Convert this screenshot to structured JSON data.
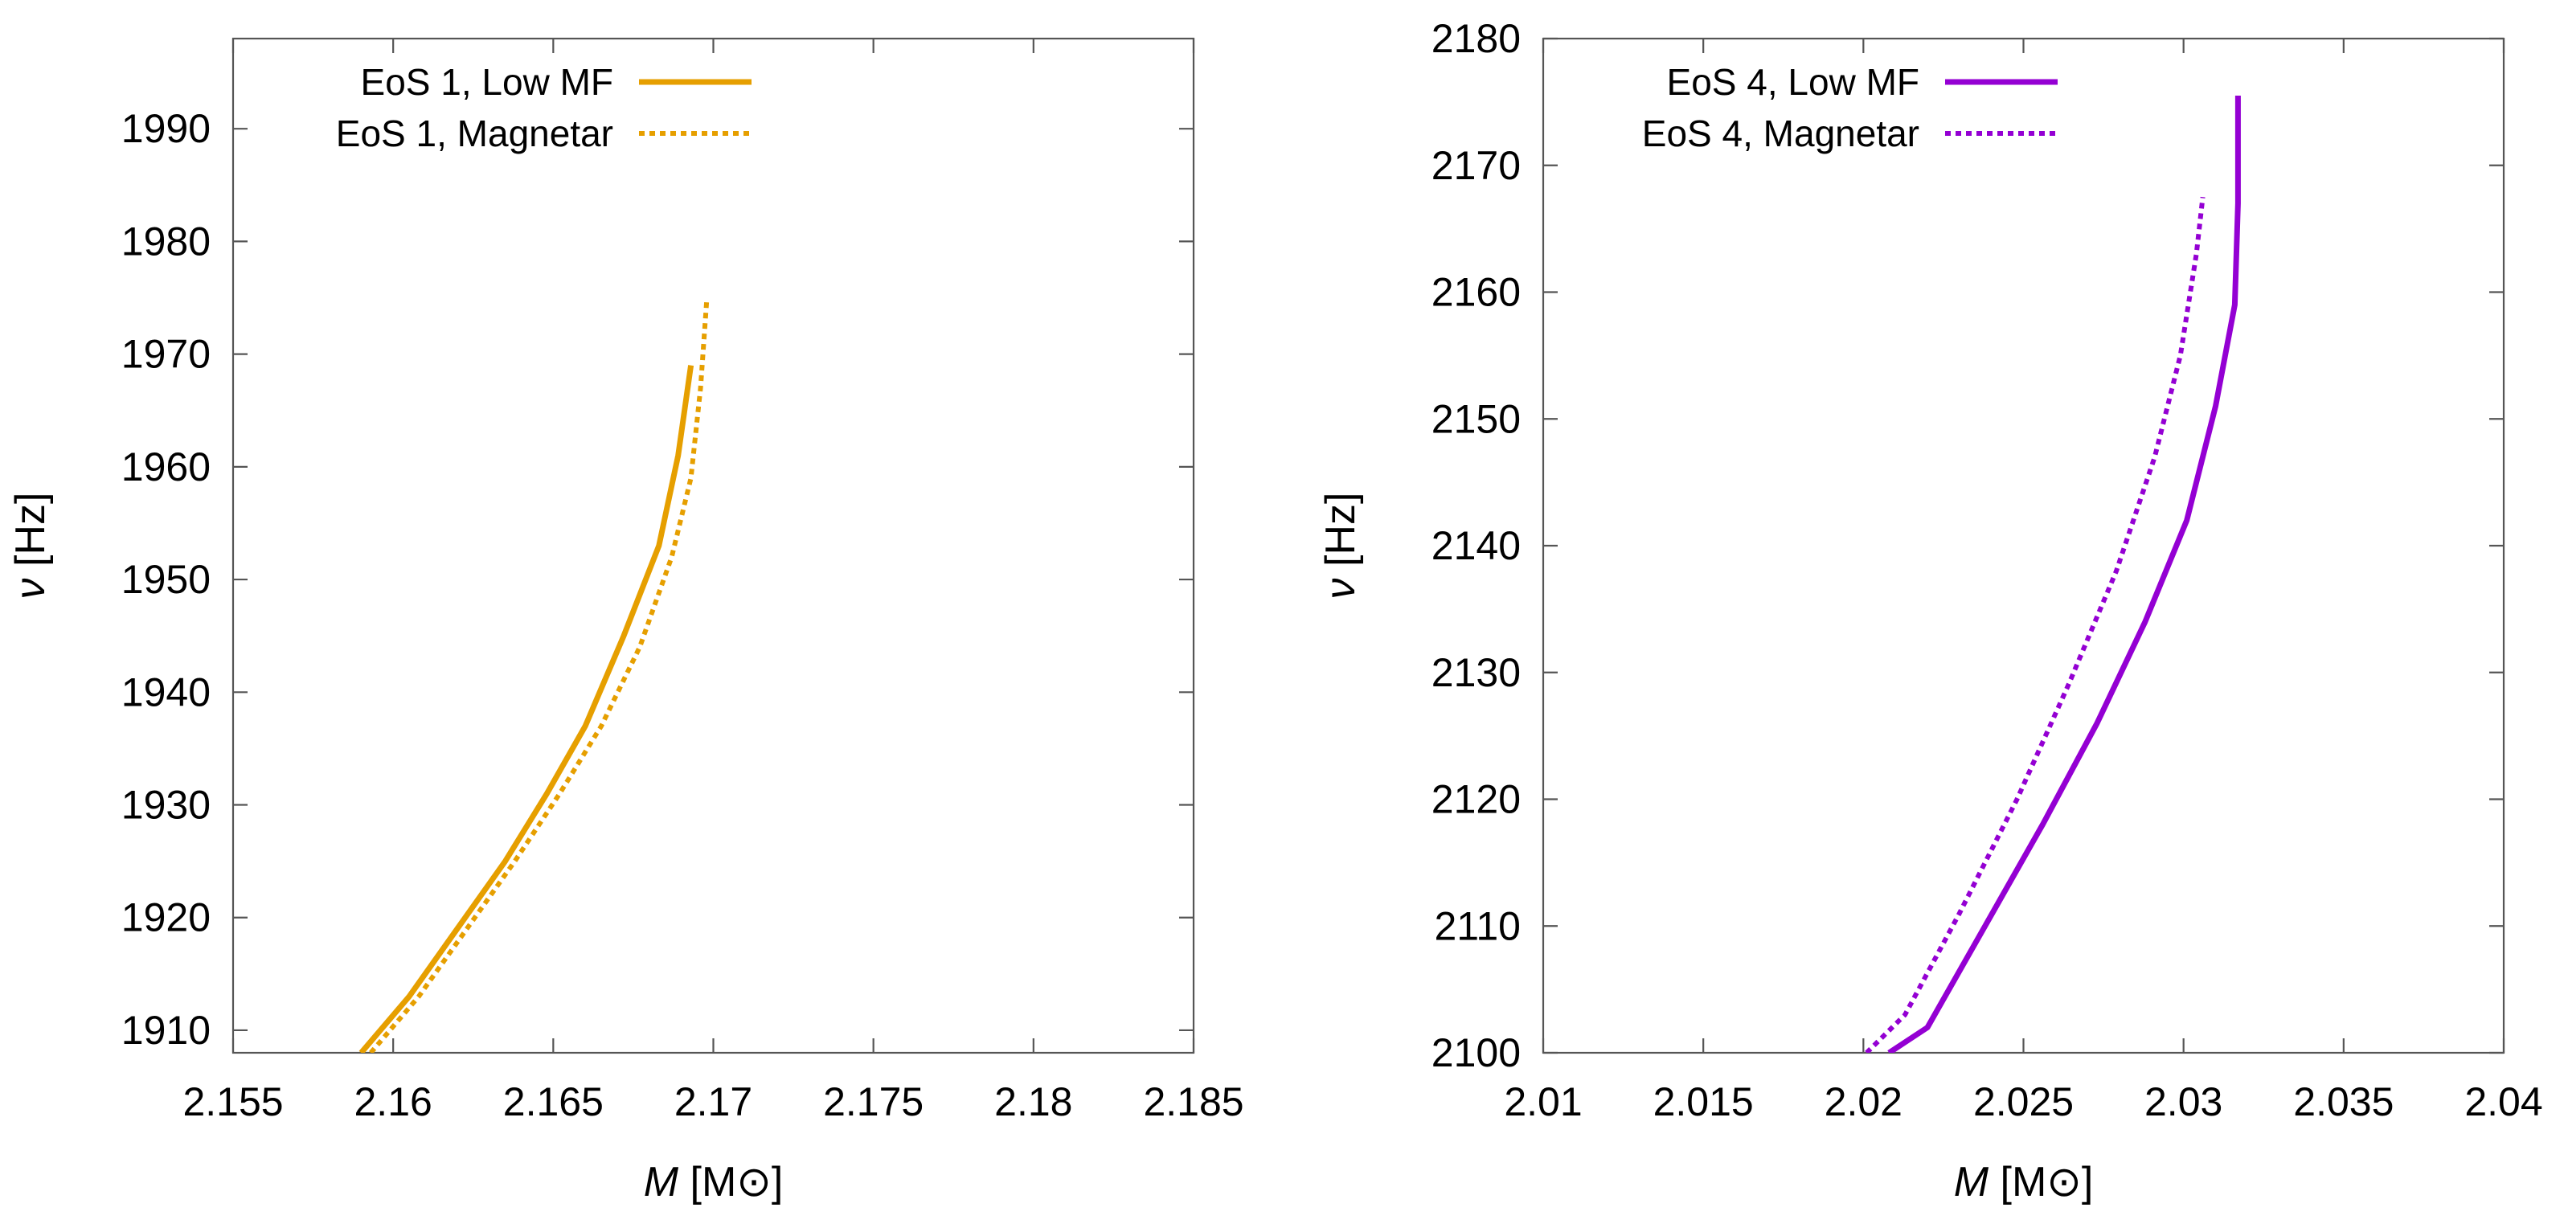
{
  "chart_data": [
    {
      "type": "line",
      "xlabel": "M [M⊙]",
      "ylabel": "ν [Hz]",
      "xlim": [
        2.155,
        2.185
      ],
      "ylim": [
        1908,
        1998
      ],
      "xticks": [
        "2.155",
        "2.16",
        "2.165",
        "2.17",
        "2.175",
        "2.18",
        "2.185"
      ],
      "xtick_values": [
        2.155,
        2.16,
        2.165,
        2.17,
        2.175,
        2.18,
        2.185
      ],
      "yticks": [
        "1910",
        "1920",
        "1930",
        "1940",
        "1950",
        "1960",
        "1970",
        "1980",
        "1990"
      ],
      "ytick_values": [
        1910,
        1920,
        1930,
        1940,
        1950,
        1960,
        1970,
        1980,
        1990
      ],
      "grid": false,
      "legend_position": "top-left",
      "series": [
        {
          "name": "EoS 1, Low MF",
          "color": "#e69f00",
          "style": "solid",
          "x": [
            2.159,
            2.1605,
            2.162,
            2.1635,
            2.1648,
            2.166,
            2.1672,
            2.1683,
            2.1689,
            2.1693
          ],
          "y": [
            1908,
            1913,
            1919,
            1925,
            1931,
            1937,
            1945,
            1953,
            1961,
            1969
          ]
        },
        {
          "name": "EoS 1, Magnetar",
          "color": "#e69f00",
          "style": "dotted",
          "x": [
            2.1593,
            2.1608,
            2.1623,
            2.1638,
            2.1652,
            2.1665,
            2.1677,
            2.1687,
            2.1693,
            2.1696,
            2.1698
          ],
          "y": [
            1908,
            1913,
            1919,
            1925,
            1931,
            1937,
            1944,
            1952,
            1959,
            1967,
            1975
          ]
        }
      ]
    },
    {
      "type": "line",
      "xlabel": "M [M⊙]",
      "ylabel": "ν [Hz]",
      "xlim": [
        2.01,
        2.04
      ],
      "ylim": [
        2100,
        2180
      ],
      "xticks": [
        "2.01",
        "2.015",
        "2.02",
        "2.025",
        "2.03",
        "2.035",
        "2.04"
      ],
      "xtick_values": [
        2.01,
        2.015,
        2.02,
        2.025,
        2.03,
        2.035,
        2.04
      ],
      "yticks": [
        "2100",
        "2110",
        "2120",
        "2130",
        "2140",
        "2150",
        "2160",
        "2170",
        "2180"
      ],
      "ytick_values": [
        2100,
        2110,
        2120,
        2130,
        2140,
        2150,
        2160,
        2170,
        2180
      ],
      "grid": false,
      "legend_position": "top-left",
      "series": [
        {
          "name": "EoS 4, Low MF",
          "color": "#9400d3",
          "style": "solid",
          "x": [
            2.0208,
            2.022,
            2.0238,
            2.0256,
            2.0273,
            2.0288,
            2.0301,
            2.031,
            2.0316,
            2.0317,
            2.0317
          ],
          "y": [
            2100,
            2102,
            2110,
            2118,
            2126,
            2134,
            2142,
            2151,
            2159,
            2167,
            2175.5
          ]
        },
        {
          "name": "EoS 4, Magnetar",
          "color": "#9400d3",
          "style": "dotted",
          "x": [
            2.0201,
            2.0213,
            2.023,
            2.0248,
            2.0264,
            2.0279,
            2.0291,
            2.0299,
            2.0304,
            2.0306
          ],
          "y": [
            2100,
            2103,
            2111,
            2120,
            2129,
            2138,
            2147,
            2155,
            2163,
            2167.5
          ]
        }
      ]
    }
  ]
}
